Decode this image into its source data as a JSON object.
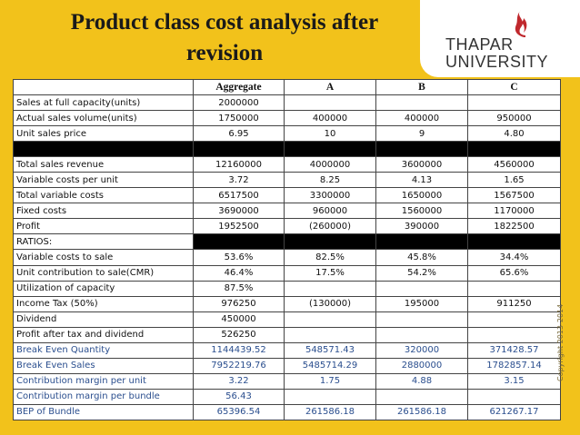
{
  "title": "Product class cost analysis after revision",
  "logo": {
    "line1": "THAPAR",
    "line2": "UNIVERSITY",
    "icon": "flame-logo-icon"
  },
  "copyright": "Copyright 2013-2014",
  "table": {
    "headers": [
      "",
      "Aggregate",
      "A",
      "B",
      "C"
    ],
    "rows": [
      {
        "label": "Sales at full capacity(units)",
        "values": [
          "2000000",
          "",
          "",
          ""
        ]
      },
      {
        "label": "Actual sales volume(units)",
        "values": [
          "1750000",
          "400000",
          "400000",
          "950000"
        ]
      },
      {
        "label": "Unit sales price",
        "values": [
          "6.95",
          "10",
          "9",
          "4.80"
        ]
      },
      {
        "label": "",
        "values": [
          "",
          "",
          "",
          ""
        ],
        "black": "full"
      },
      {
        "label": "Total sales revenue",
        "values": [
          "12160000",
          "4000000",
          "3600000",
          "4560000"
        ]
      },
      {
        "label": "Variable costs per unit",
        "values": [
          "3.72",
          "8.25",
          "4.13",
          "1.65"
        ]
      },
      {
        "label": "Total variable costs",
        "values": [
          "6517500",
          "3300000",
          "1650000",
          "1567500"
        ]
      },
      {
        "label": "Fixed costs",
        "values": [
          "3690000",
          "960000",
          "1560000",
          "1170000"
        ]
      },
      {
        "label": "Profit",
        "values": [
          "1952500",
          "(260000)",
          "390000",
          "1822500"
        ]
      },
      {
        "label": "RATIOS:",
        "values": [
          "",
          "",
          "",
          ""
        ],
        "black": "values"
      },
      {
        "label": "Variable costs to sale",
        "values": [
          "53.6%",
          "82.5%",
          "45.8%",
          "34.4%"
        ]
      },
      {
        "label": "Unit contribution to sale(CMR)",
        "values": [
          "46.4%",
          "17.5%",
          "54.2%",
          "65.6%"
        ]
      },
      {
        "label": "Utilization of capacity",
        "values": [
          "87.5%",
          "",
          "",
          ""
        ]
      },
      {
        "label": "Income Tax (50%)",
        "values": [
          "976250",
          "(130000)",
          "195000",
          "911250"
        ]
      },
      {
        "label": "Dividend",
        "values": [
          "450000",
          "",
          "",
          ""
        ]
      },
      {
        "label": "Profit after tax and dividend",
        "values": [
          "526250",
          "",
          "",
          ""
        ]
      },
      {
        "label": "Break Even Quantity",
        "values": [
          "1144439.52",
          "548571.43",
          "320000",
          "371428.57"
        ],
        "blue": true
      },
      {
        "label": "Break Even Sales",
        "values": [
          "7952219.76",
          "5485714.29",
          "2880000",
          "1782857.14"
        ],
        "blue": true
      },
      {
        "label": "Contribution margin per unit",
        "values": [
          "3.22",
          "1.75",
          "4.88",
          "3.15"
        ],
        "blue": true
      },
      {
        "label": "Contribution margin per bundle",
        "values": [
          "56.43",
          "",
          "",
          ""
        ],
        "blue": true
      },
      {
        "label": "BEP of Bundle",
        "values": [
          "65396.54",
          "261586.18",
          "261586.18",
          "621267.17"
        ],
        "blue": true
      }
    ]
  }
}
